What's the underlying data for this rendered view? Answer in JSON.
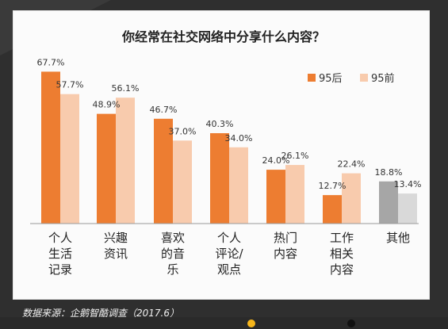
{
  "chart_data": {
    "type": "bar",
    "title": "你经常在社交网络中分享什么内容？",
    "categories": [
      [
        "个人",
        "生活",
        "记录"
      ],
      [
        "兴趣",
        "资讯"
      ],
      [
        "喜欢",
        "的音",
        "乐"
      ],
      [
        "个人",
        "评论/",
        "观点"
      ],
      [
        "热门",
        "内容"
      ],
      [
        "工作",
        "相关",
        "内容"
      ],
      [
        "其他"
      ]
    ],
    "series": [
      {
        "name": "95后",
        "values": [
          67.7,
          48.9,
          46.7,
          40.3,
          24.0,
          12.7,
          18.8
        ],
        "labels": [
          "67.7%",
          "48.9%",
          "46.7%",
          "40.3%",
          "24.0%",
          "12.7%",
          "18.8%"
        ]
      },
      {
        "name": "95前",
        "values": [
          57.7,
          56.1,
          37.0,
          34.0,
          26.1,
          22.4,
          13.4
        ],
        "labels": [
          "57.7%",
          "56.1%",
          "37.0%",
          "34.0%",
          "26.1%",
          "22.4%",
          "13.4%"
        ]
      }
    ],
    "ylim": [
      0,
      70
    ],
    "colors": {
      "series1": "#ed7d31",
      "series2": "#f8cbad",
      "other1": "#a6a6a6",
      "other2": "#d9d9d9"
    },
    "legend_position": "top-right"
  },
  "source_text": "数据来源：企鹅智酷调查（2017.6）",
  "colors": {
    "background": "#2f2f2f",
    "card": "#fbfbfb",
    "accent_dot": "#f6b61c"
  }
}
